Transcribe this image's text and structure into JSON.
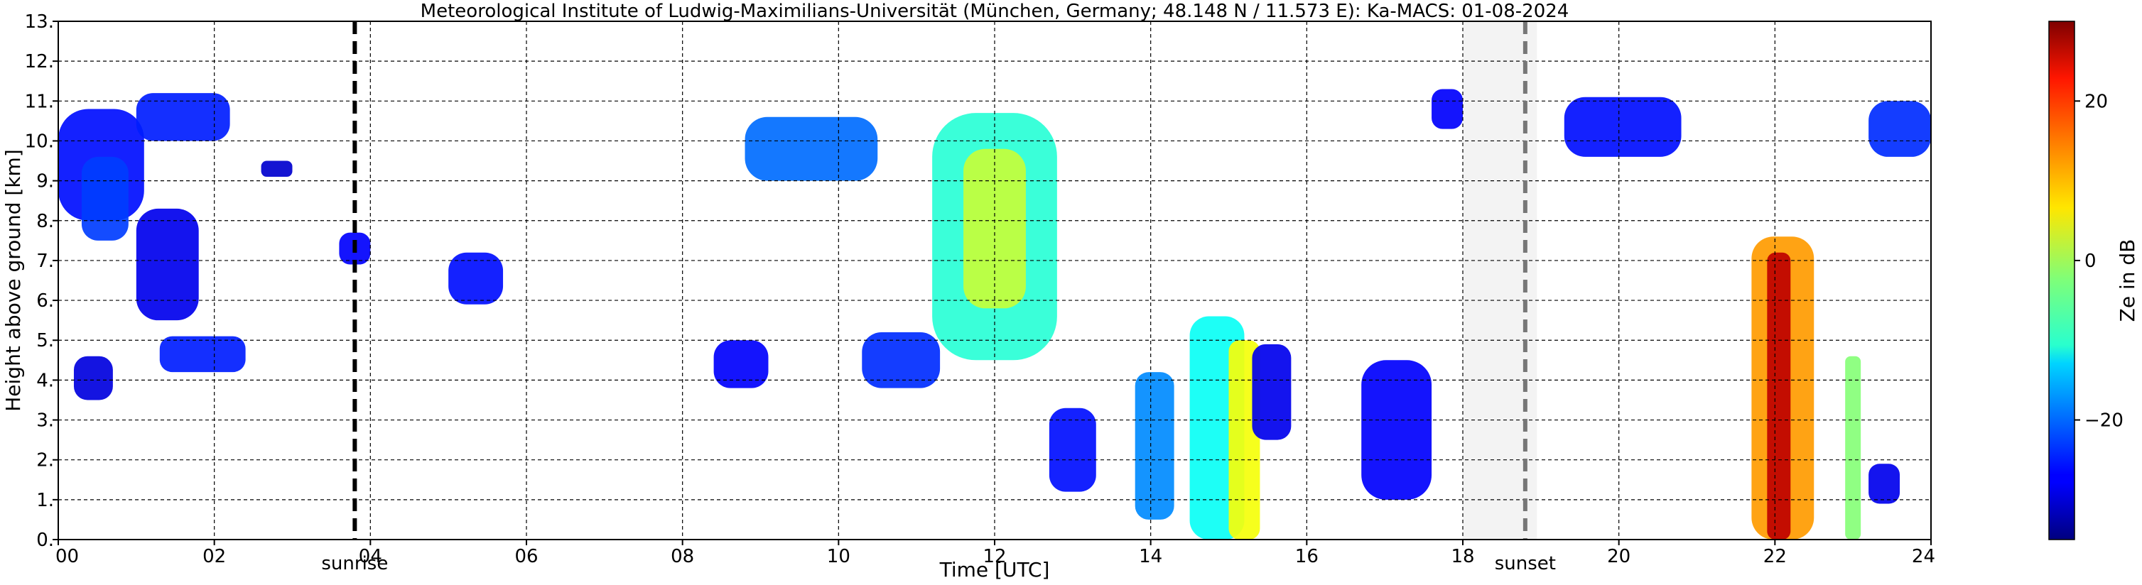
{
  "chart_data": {
    "type": "heatmap",
    "title": "Meteorological Institute of Ludwig-Maximilians-Universität (München, Germany; 48.148 N / 11.573 E):    Ka-MACS: 01-08-2024",
    "xlabel": "Time [UTC]",
    "ylabel": "Height above ground [km]",
    "xlim": [
      0,
      24
    ],
    "ylim": [
      0,
      13
    ],
    "x_ticks": [
      0,
      2,
      4,
      6,
      8,
      10,
      12,
      14,
      16,
      18,
      20,
      22,
      24
    ],
    "x_tick_labels": [
      "00",
      "02",
      "04",
      "06",
      "08",
      "10",
      "12",
      "14",
      "16",
      "18",
      "20",
      "22",
      "24"
    ],
    "y_ticks": [
      0,
      1,
      2,
      3,
      4,
      5,
      6,
      7,
      8,
      9,
      10,
      11,
      12,
      13
    ],
    "y_tick_labels": [
      "0.",
      "1.",
      "2.",
      "3.",
      "4.",
      "5.",
      "6.",
      "7.",
      "8.",
      "9.",
      "10.",
      "11.",
      "12.",
      "13."
    ],
    "grid": true,
    "colorbar": {
      "label": "Ze in dB",
      "min": -35,
      "max": 30,
      "ticks": [
        20,
        0,
        -20
      ],
      "tick_labels": [
        "20",
        "0",
        "−20"
      ],
      "colormap": "jet"
    },
    "annotations": [
      {
        "label": "sunrise",
        "time": 3.8
      },
      {
        "label": "sunset",
        "time": 18.8
      }
    ],
    "shaded_interval": [
      18.0,
      18.95
    ],
    "echo_regions": [
      {
        "t0": 0.0,
        "t1": 1.1,
        "h0": 8.0,
        "h1": 10.8,
        "ze": -26
      },
      {
        "t0": 0.3,
        "t1": 0.9,
        "h0": 7.5,
        "h1": 9.6,
        "ze": -23
      },
      {
        "t0": 1.0,
        "t1": 2.2,
        "h0": 10.0,
        "h1": 11.2,
        "ze": -25
      },
      {
        "t0": 1.0,
        "t1": 1.8,
        "h0": 5.5,
        "h1": 8.3,
        "ze": -28
      },
      {
        "t0": 1.3,
        "t1": 2.4,
        "h0": 4.2,
        "h1": 5.1,
        "ze": -25
      },
      {
        "t0": 0.2,
        "t1": 0.7,
        "h0": 3.5,
        "h1": 4.6,
        "ze": -29
      },
      {
        "t0": 2.6,
        "t1": 3.0,
        "h0": 9.1,
        "h1": 9.5,
        "ze": -30
      },
      {
        "t0": 3.6,
        "t1": 4.0,
        "h0": 6.9,
        "h1": 7.7,
        "ze": -27
      },
      {
        "t0": 5.0,
        "t1": 5.7,
        "h0": 5.9,
        "h1": 7.2,
        "ze": -26
      },
      {
        "t0": 8.4,
        "t1": 9.1,
        "h0": 3.8,
        "h1": 5.0,
        "ze": -27
      },
      {
        "t0": 8.8,
        "t1": 10.5,
        "h0": 9.0,
        "h1": 10.6,
        "ze": -20
      },
      {
        "t0": 10.3,
        "t1": 11.3,
        "h0": 3.8,
        "h1": 5.2,
        "ze": -24
      },
      {
        "t0": 11.2,
        "t1": 12.8,
        "h0": 4.5,
        "h1": 10.7,
        "ze": -8
      },
      {
        "t0": 11.6,
        "t1": 12.4,
        "h0": 5.8,
        "h1": 9.8,
        "ze": 2
      },
      {
        "t0": 12.7,
        "t1": 13.3,
        "h0": 1.2,
        "h1": 3.3,
        "ze": -26
      },
      {
        "t0": 13.8,
        "t1": 14.3,
        "h0": 0.5,
        "h1": 4.2,
        "ze": -18
      },
      {
        "t0": 14.5,
        "t1": 15.2,
        "h0": 0.0,
        "h1": 5.6,
        "ze": -10
      },
      {
        "t0": 15.0,
        "t1": 15.4,
        "h0": 0.0,
        "h1": 5.0,
        "ze": 5
      },
      {
        "t0": 15.3,
        "t1": 15.8,
        "h0": 2.5,
        "h1": 4.9,
        "ze": -28
      },
      {
        "t0": 16.7,
        "t1": 17.6,
        "h0": 1.0,
        "h1": 4.5,
        "ze": -27
      },
      {
        "t0": 17.6,
        "t1": 18.0,
        "h0": 10.3,
        "h1": 11.3,
        "ze": -27
      },
      {
        "t0": 19.3,
        "t1": 20.8,
        "h0": 9.6,
        "h1": 11.1,
        "ze": -26
      },
      {
        "t0": 21.7,
        "t1": 22.5,
        "h0": 0.0,
        "h1": 7.6,
        "ze": 12
      },
      {
        "t0": 21.9,
        "t1": 22.2,
        "h0": 0.0,
        "h1": 7.2,
        "ze": 26
      },
      {
        "t0": 22.9,
        "t1": 23.1,
        "h0": 0.0,
        "h1": 4.6,
        "ze": -2
      },
      {
        "t0": 23.2,
        "t1": 24.0,
        "h0": 9.6,
        "h1": 11.0,
        "ze": -24
      },
      {
        "t0": 23.2,
        "t1": 23.6,
        "h0": 0.9,
        "h1": 1.9,
        "ze": -28
      }
    ]
  }
}
